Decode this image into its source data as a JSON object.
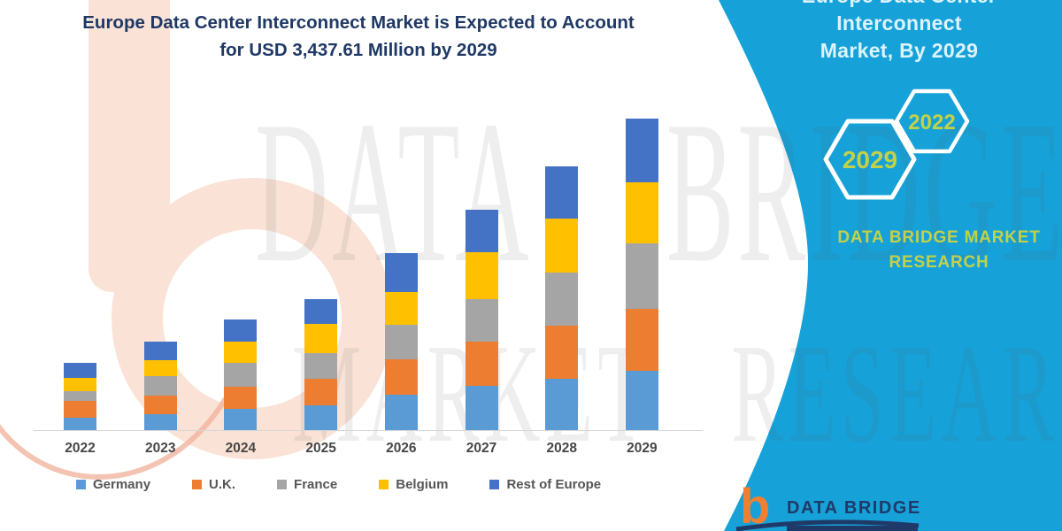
{
  "title": {
    "line1": "Europe Data Center Interconnect Market is Expected to Account",
    "line2": "for USD 3,437.61 Million by 2029"
  },
  "watermark": {
    "line1": "DATA BRIDGE",
    "line2": "MARKET RESEARCH"
  },
  "panel": {
    "heading_line1": "Europe Data Center Interconnect",
    "heading_line2": "Market, By 2029",
    "hexagons": [
      {
        "label": "2029"
      },
      {
        "label": "2022"
      }
    ],
    "brand_line1": "DATA BRIDGE MARKET",
    "brand_line2": "RESEARCH",
    "logo": {
      "glyph": "b",
      "text": "DATA BRIDGE"
    },
    "colors": {
      "panel_bg": "#16a2d9",
      "accent_text": "#c3d147",
      "heading_text": "#ddf3fc",
      "logo_orange": "#ef8032",
      "logo_navy": "#1f3a68"
    }
  },
  "chart_data": {
    "type": "bar",
    "stacked": true,
    "title": "Europe Data Center Interconnect Market is Expected to Account for USD 3,437.61 Million by 2029",
    "unit": "USD Million",
    "xlabel": "",
    "ylabel": "",
    "grid": false,
    "y_axis_visible": false,
    "legend_position": "bottom",
    "categories": [
      "2022",
      "2023",
      "2024",
      "2025",
      "2026",
      "2027",
      "2028",
      "2029"
    ],
    "series": [
      {
        "name": "Germany",
        "color": "#5B9BD5",
        "values": [
          136,
          175,
          234,
          276,
          390,
          487,
          568,
          655
        ]
      },
      {
        "name": "U.K.",
        "color": "#ED7D31",
        "values": [
          185,
          205,
          244,
          292,
          390,
          487,
          585,
          688
        ]
      },
      {
        "name": "France",
        "color": "#A5A5A5",
        "values": [
          107,
          214,
          263,
          283,
          380,
          471,
          585,
          720
        ]
      },
      {
        "name": "Belgium",
        "color": "#FFC000",
        "values": [
          146,
          175,
          234,
          325,
          361,
          520,
          601,
          671
        ]
      },
      {
        "name": "Rest of Europe",
        "color": "#4472C4",
        "values": [
          166,
          205,
          244,
          270,
          429,
          471,
          568,
          703.61
        ]
      }
    ],
    "totals_by_year": [
      740,
      974,
      1219,
      1446,
      1950,
      2436,
      2907,
      3437.61
    ],
    "highlight_total_2029": 3437.61
  }
}
